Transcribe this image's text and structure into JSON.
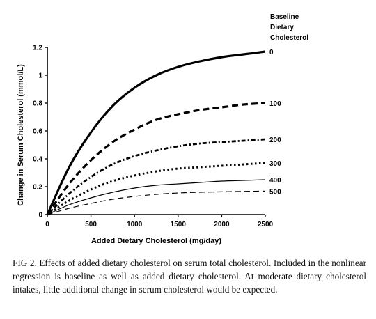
{
  "chart_data": {
    "type": "line",
    "xlabel": "Added Dietary Cholesterol (mg/day)",
    "ylabel": "Change in Serum Cholesterol (mmol/L)",
    "xlim": [
      0,
      2500
    ],
    "ylim": [
      0,
      1.2
    ],
    "x_ticks": [
      "0",
      "500",
      "1000",
      "1500",
      "2000",
      "2500"
    ],
    "y_ticks": [
      "0",
      "0.2",
      "0.4",
      "0.6",
      "0.8",
      "1",
      "1.2"
    ],
    "legend_title": [
      "Baseline",
      "Dietary",
      "Cholesterol"
    ],
    "legend_placement": "right",
    "grid": false,
    "x": [
      0,
      250,
      500,
      750,
      1000,
      1250,
      1500,
      1750,
      2000,
      2250,
      2500
    ],
    "series": [
      {
        "name": "0",
        "style": "solid-thick",
        "values": [
          0,
          0.34,
          0.59,
          0.78,
          0.91,
          1.0,
          1.06,
          1.1,
          1.13,
          1.15,
          1.17
        ]
      },
      {
        "name": "100",
        "style": "dash-thick",
        "values": [
          0,
          0.22,
          0.39,
          0.52,
          0.61,
          0.68,
          0.72,
          0.75,
          0.77,
          0.79,
          0.8
        ]
      },
      {
        "name": "200",
        "style": "dashdot",
        "values": [
          0,
          0.15,
          0.27,
          0.36,
          0.42,
          0.46,
          0.49,
          0.51,
          0.52,
          0.53,
          0.54
        ]
      },
      {
        "name": "300",
        "style": "dotted",
        "values": [
          0,
          0.1,
          0.18,
          0.24,
          0.28,
          0.31,
          0.33,
          0.34,
          0.35,
          0.36,
          0.37
        ]
      },
      {
        "name": "400",
        "style": "solid-thin",
        "values": [
          0,
          0.07,
          0.12,
          0.16,
          0.19,
          0.21,
          0.22,
          0.23,
          0.24,
          0.245,
          0.25
        ]
      },
      {
        "name": "500",
        "style": "dash-thin",
        "values": [
          0,
          0.045,
          0.08,
          0.11,
          0.13,
          0.145,
          0.155,
          0.16,
          0.163,
          0.166,
          0.168
        ]
      }
    ]
  },
  "caption": "FIG 2. Effects of added dietary cholesterol on serum total cholesterol. Included in the nonlinear regression is baseline as well as added dietary cholesterol. At moderate dietary cholesterol intakes, little additional change in serum cholesterol would be expected."
}
